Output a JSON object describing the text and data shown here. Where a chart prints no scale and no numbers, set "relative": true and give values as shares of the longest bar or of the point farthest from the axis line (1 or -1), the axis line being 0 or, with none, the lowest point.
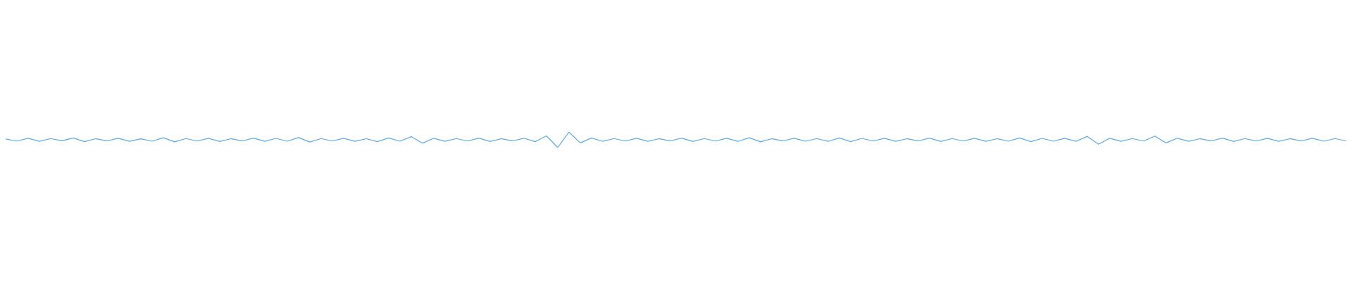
{
  "chart_data": {
    "type": "line",
    "relative": true,
    "marker": "none",
    "categories": [
      null,
      null,
      null,
      null,
      null,
      null,
      null,
      null,
      null,
      null,
      null,
      null,
      null,
      null,
      null,
      null,
      null,
      null,
      null,
      null,
      null,
      null,
      null,
      null,
      null,
      null,
      null,
      null,
      null,
      null,
      null,
      null,
      null,
      null,
      null,
      null,
      null,
      null,
      null,
      null,
      null,
      null,
      null,
      null,
      null,
      null,
      null,
      null,
      null,
      null,
      null,
      null,
      null,
      null,
      null,
      null,
      null,
      null,
      null,
      null,
      null,
      null,
      null,
      null,
      null,
      null,
      null,
      null,
      null,
      null,
      null,
      null,
      null,
      null,
      null,
      null,
      null,
      null,
      null,
      null,
      null,
      null,
      null,
      null,
      null,
      null,
      null,
      null,
      null,
      null,
      null,
      null,
      null,
      null,
      null,
      null,
      null,
      null,
      null,
      null,
      null,
      null,
      null,
      null,
      null,
      null,
      null,
      null,
      null,
      null,
      null,
      null,
      null,
      null,
      null,
      null,
      null,
      null,
      null,
      null
    ],
    "series": [
      {
        "color": "#5aa9e6",
        "values": [
          0.55,
          0.42,
          0.6,
          0.4,
          0.58,
          0.44,
          0.62,
          0.38,
          0.57,
          0.43,
          0.6,
          0.4,
          0.56,
          0.41,
          0.63,
          0.37,
          0.58,
          0.42,
          0.6,
          0.39,
          0.57,
          0.43,
          0.61,
          0.4,
          0.59,
          0.41,
          0.64,
          0.36,
          0.58,
          0.42,
          0.6,
          0.4,
          0.57,
          0.38,
          0.62,
          0.41,
          0.7,
          0.28,
          0.6,
          0.4,
          0.58,
          0.42,
          0.61,
          0.39,
          0.57,
          0.43,
          0.6,
          0.38,
          0.75,
          0.0,
          1,
          0.3,
          0.62,
          0.4,
          0.58,
          0.42,
          0.6,
          0.4,
          0.57,
          0.43,
          0.61,
          0.39,
          0.58,
          0.42,
          0.6,
          0.4,
          0.63,
          0.37,
          0.57,
          0.43,
          0.6,
          0.41,
          0.58,
          0.4,
          0.62,
          0.38,
          0.59,
          0.42,
          0.6,
          0.4,
          0.57,
          0.43,
          0.61,
          0.39,
          0.58,
          0.42,
          0.6,
          0.4,
          0.57,
          0.41,
          0.62,
          0.38,
          0.59,
          0.41,
          0.6,
          0.4,
          0.72,
          0.22,
          0.6,
          0.4,
          0.58,
          0.42,
          0.74,
          0.3,
          0.6,
          0.4,
          0.57,
          0.43,
          0.61,
          0.39,
          0.58,
          0.42,
          0.6,
          0.4,
          0.57,
          0.43,
          0.6,
          0.41,
          0.58,
          0.42
        ]
      }
    ]
  }
}
